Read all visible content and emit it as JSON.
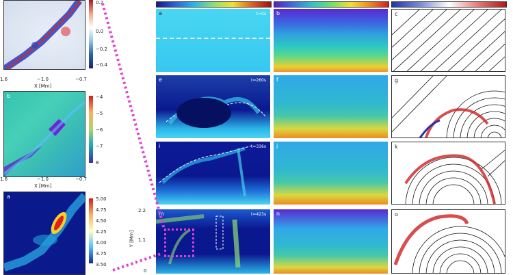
{
  "left_panels": {
    "top": {
      "cbar_ticks": [
        "0.2",
        "0.0",
        "−0.2",
        "−0.4"
      ],
      "x_ticks": [
        "1.6",
        "−1.0",
        "−0.7"
      ],
      "xlabel": "X [Mm]"
    },
    "b": {
      "label": "b",
      "cbar_ticks": [
        "−4",
        "−5",
        "−6",
        "−7",
        "8"
      ],
      "x_ticks": [
        "1.6",
        "−1.0",
        "−0.7"
      ],
      "xlabel": "X [Mm]"
    },
    "bottom": {
      "label": "a",
      "cbar_ticks": [
        "5.00",
        "4.75",
        "4.50",
        "4.25",
        "4.00",
        "3.75",
        "3.50"
      ]
    }
  },
  "grid": {
    "ylabel": "Y [Mm]",
    "y_ticks": [
      "2.2",
      "1.1",
      "0"
    ],
    "rows": [
      {
        "cells": [
          "a",
          "b",
          "c"
        ],
        "time": "t=0s"
      },
      {
        "cells": [
          "e",
          "f",
          "g"
        ],
        "time": "t=260s"
      },
      {
        "cells": [
          "i",
          "j",
          "k"
        ],
        "time": "t=336s"
      },
      {
        "cells": [
          "m",
          "n",
          "o"
        ],
        "time": "t=423s"
      }
    ]
  },
  "colors": {
    "highlight": "#e040d0",
    "field_lines": "#111111"
  }
}
